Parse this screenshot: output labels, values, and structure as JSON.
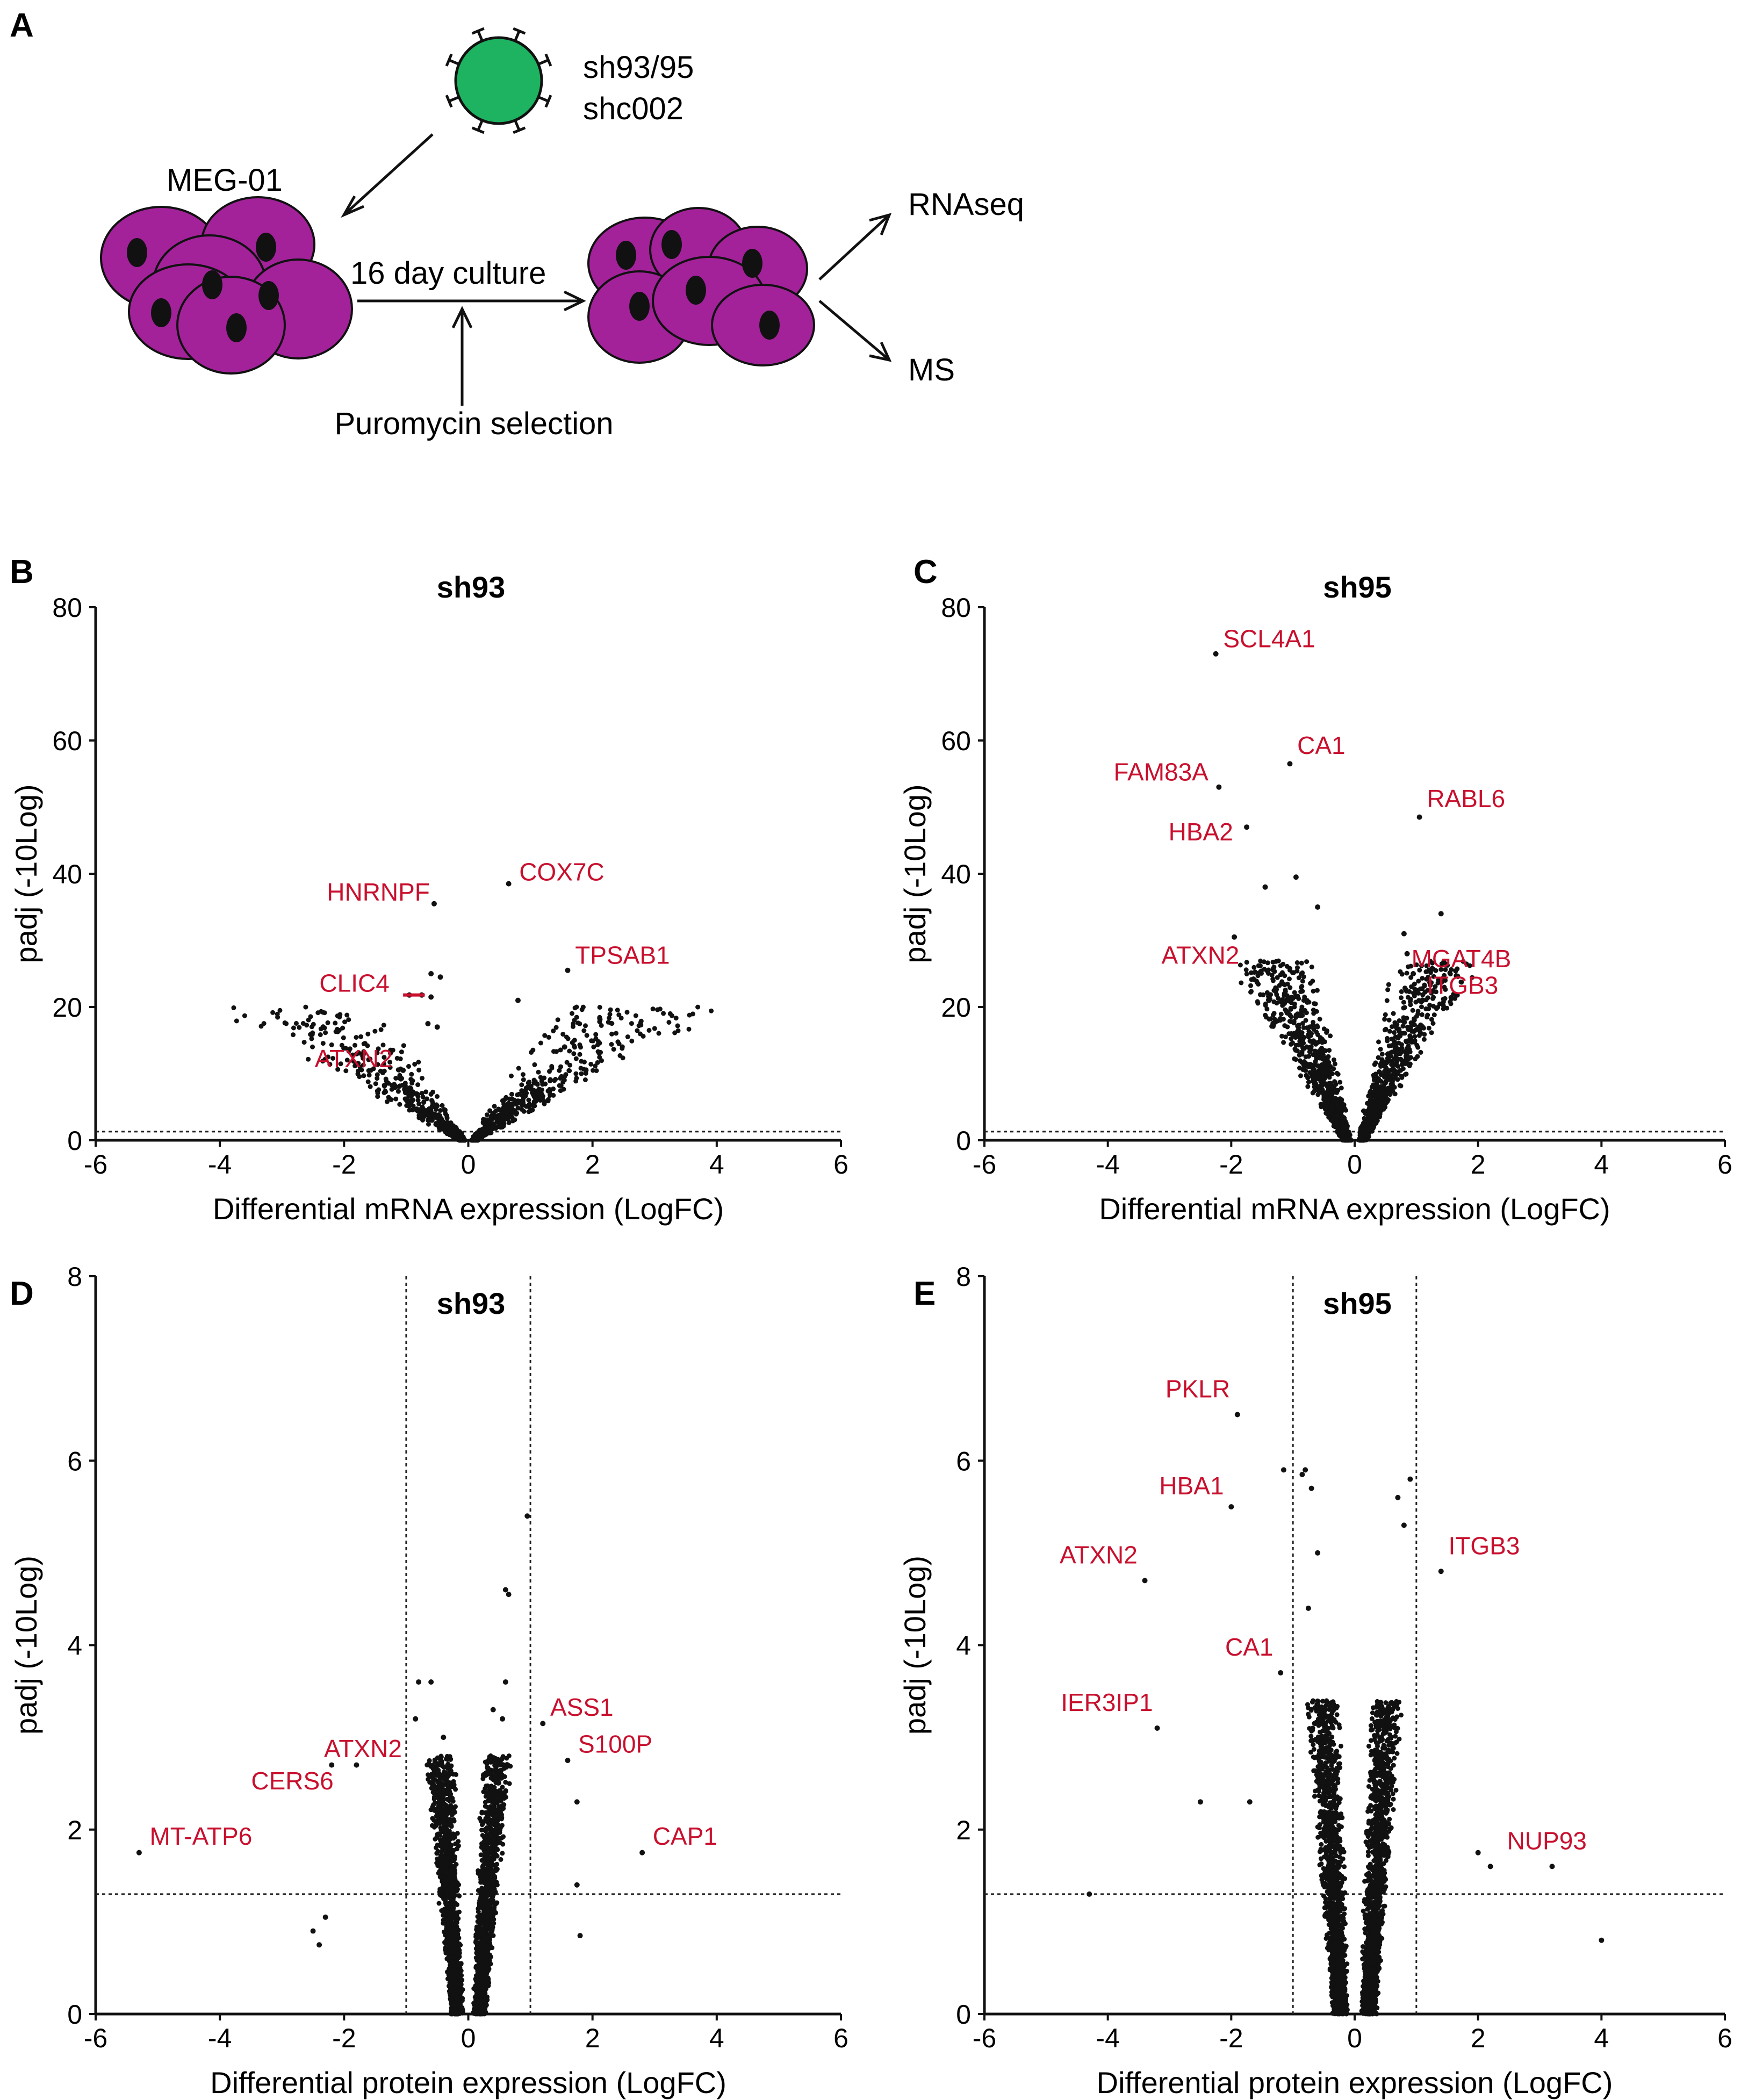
{
  "panel_a": {
    "letter": "A",
    "virus_label_1": "sh93/95",
    "virus_label_2": "shc002",
    "cell_line": "MEG-01",
    "culture": "16 day culture",
    "selection": "Puromycin selection",
    "out_1": "RNAseq",
    "out_2": "MS",
    "colors": {
      "virus": "#1db360",
      "cell": "#a3229a",
      "nucleus": "#111111"
    }
  },
  "chart_data": [
    {
      "id": "B",
      "letter": "B",
      "type": "scatter",
      "title": "sh93",
      "xlabel": "Differential mRNA expression (LogFC)",
      "ylabel": "padj (-10Log)",
      "xlim": [
        -6,
        6
      ],
      "ylim": [
        0,
        80
      ],
      "xticks": [
        "-6",
        "-4",
        "-2",
        "0",
        "2",
        "4",
        "6"
      ],
      "yticks": [
        "0",
        "20",
        "40",
        "60",
        "80"
      ],
      "hline": 1.3,
      "vlines": [],
      "spread": {
        "seed": 11,
        "count": 1300,
        "widthBase": 0.12,
        "widthSlope": 0.16,
        "ymax": 20,
        "decay": 3.0
      },
      "points": [
        [
          -0.55,
          35.5
        ],
        [
          0.65,
          38.5
        ],
        [
          1.6,
          25.5
        ],
        [
          -0.6,
          25
        ],
        [
          -0.45,
          24.5
        ],
        [
          -0.6,
          21.5
        ],
        [
          -0.75,
          21.8
        ],
        [
          -0.95,
          21.8
        ],
        [
          -1.25,
          13.5
        ],
        [
          -1.05,
          10.5
        ],
        [
          1.55,
          14
        ],
        [
          0.8,
          21
        ],
        [
          -0.5,
          17
        ],
        [
          -0.65,
          17.5
        ]
      ],
      "labels": [
        {
          "text": "HNRNPF",
          "x": -0.55,
          "y": 35.5,
          "anchor": "end"
        },
        {
          "text": "COX7C",
          "x": 0.75,
          "y": 38.5,
          "anchor": "start"
        },
        {
          "text": "TPSAB1",
          "x": 1.65,
          "y": 26,
          "anchor": "start"
        },
        {
          "text": "CLIC4",
          "x": -1.2,
          "y": 21.8,
          "anchor": "end"
        },
        {
          "text": "ATXN2",
          "x": -1.15,
          "y": 10.5,
          "anchor": "end"
        }
      ]
    },
    {
      "id": "C",
      "letter": "C",
      "type": "scatter",
      "title": "sh95",
      "xlabel": "Differential mRNA expression (LogFC)",
      "ylabel": "padj (-10Log)",
      "xlim": [
        -6,
        6
      ],
      "ylim": [
        0,
        80
      ],
      "xticks": [
        "-6",
        "-4",
        "-2",
        "0",
        "2",
        "4",
        "6"
      ],
      "yticks": [
        "0",
        "20",
        "40",
        "60",
        "80"
      ],
      "hline": 1.3,
      "vlines": [],
      "spread": {
        "seed": 23,
        "count": 1800,
        "widthBase": 0.15,
        "widthSlope": 0.055,
        "ymax": 27,
        "decay": 2.0
      },
      "points": [
        [
          -2.25,
          73
        ],
        [
          -1.05,
          56.5
        ],
        [
          -2.2,
          53
        ],
        [
          1.05,
          48.5
        ],
        [
          -1.75,
          47
        ],
        [
          -0.95,
          39.5
        ],
        [
          -1.45,
          38
        ],
        [
          -1.95,
          30.5
        ],
        [
          -0.6,
          35
        ],
        [
          0.8,
          31
        ],
        [
          1.4,
          34
        ],
        [
          0.85,
          28
        ],
        [
          0.95,
          25
        ],
        [
          1.1,
          21
        ]
      ],
      "labels": [
        {
          "text": "SCL4A1",
          "x": -2.2,
          "y": 73.5,
          "anchor": "start"
        },
        {
          "text": "CA1",
          "x": -1.0,
          "y": 57.5,
          "anchor": "start"
        },
        {
          "text": "FAM83A",
          "x": -2.3,
          "y": 53.5,
          "anchor": "end"
        },
        {
          "text": "RABL6",
          "x": 1.1,
          "y": 49.5,
          "anchor": "start"
        },
        {
          "text": "HBA2",
          "x": -1.9,
          "y": 44.5,
          "anchor": "end"
        },
        {
          "text": "ATXN2",
          "x": -1.8,
          "y": 26,
          "anchor": "end"
        },
        {
          "text": "MGAT4B",
          "x": 0.85,
          "y": 25.5,
          "anchor": "start"
        },
        {
          "text": "ITGB3",
          "x": 1.1,
          "y": 21.5,
          "anchor": "start"
        }
      ]
    },
    {
      "id": "D",
      "letter": "D",
      "type": "scatter",
      "title": "sh93",
      "xlabel": "Differential protein expression (LogFC)",
      "ylabel": "padj (-10Log)",
      "xlim": [
        -6,
        6
      ],
      "ylim": [
        0,
        8
      ],
      "xticks": [
        "-6",
        "-4",
        "-2",
        "0",
        "2",
        "4",
        "6"
      ],
      "yticks": [
        "0",
        "2",
        "4",
        "6",
        "8"
      ],
      "hline": 1.3,
      "vlines": [
        -1,
        1
      ],
      "spread": {
        "seed": 37,
        "count": 2600,
        "widthBase": 0.22,
        "widthSlope": 0.12,
        "ymax": 2.8,
        "decay": 1.6
      },
      "points": [
        [
          -5.3,
          1.75
        ],
        [
          -2.2,
          2.7
        ],
        [
          -1.8,
          2.7
        ],
        [
          0.95,
          5.4
        ],
        [
          0.6,
          4.6
        ],
        [
          0.65,
          4.55
        ],
        [
          1.2,
          3.15
        ],
        [
          1.6,
          2.75
        ],
        [
          1.75,
          2.3
        ],
        [
          2.8,
          1.75
        ],
        [
          -0.6,
          3.6
        ],
        [
          -0.8,
          3.6
        ],
        [
          0.6,
          3.6
        ],
        [
          0.55,
          3.2
        ],
        [
          0.4,
          3.3
        ],
        [
          -2.3,
          1.05
        ],
        [
          -2.5,
          0.9
        ],
        [
          -2.4,
          0.75
        ],
        [
          1.8,
          0.85
        ],
        [
          1.75,
          1.4
        ],
        [
          -0.85,
          3.2
        ],
        [
          -0.4,
          3.0
        ]
      ],
      "labels": [
        {
          "text": "MT-ATP6",
          "x": -5.2,
          "y": 1.8,
          "anchor": "start"
        },
        {
          "text": "CERS6",
          "x": -2.1,
          "y": 2.4,
          "anchor": "end"
        },
        {
          "text": "ATXN2",
          "x": -1.0,
          "y": 2.75,
          "anchor": "end"
        },
        {
          "text": "ASS1",
          "x": 1.25,
          "y": 3.2,
          "anchor": "start"
        },
        {
          "text": "S100P",
          "x": 1.7,
          "y": 2.8,
          "anchor": "start"
        },
        {
          "text": "CAP1",
          "x": 2.9,
          "y": 1.8,
          "anchor": "start"
        }
      ]
    },
    {
      "id": "E",
      "letter": "E",
      "type": "scatter",
      "title": "sh95",
      "xlabel": "Differential protein expression (LogFC)",
      "ylabel": "padj (-10Log)",
      "xlim": [
        -6,
        6
      ],
      "ylim": [
        0,
        8
      ],
      "xticks": [
        "-6",
        "-4",
        "-2",
        "0",
        "2",
        "4",
        "6"
      ],
      "yticks": [
        "0",
        "2",
        "4",
        "6",
        "8"
      ],
      "hline": 1.3,
      "vlines": [
        -1,
        1
      ],
      "spread": {
        "seed": 53,
        "count": 2800,
        "widthBase": 0.28,
        "widthSlope": 0.1,
        "ymax": 3.4,
        "decay": 1.5
      },
      "points": [
        [
          -1.9,
          6.5
        ],
        [
          -2.0,
          5.5
        ],
        [
          -3.4,
          4.7
        ],
        [
          1.4,
          4.8
        ],
        [
          -1.2,
          3.7
        ],
        [
          -3.2,
          3.1
        ],
        [
          3.2,
          1.6
        ],
        [
          2.0,
          1.75
        ],
        [
          4.0,
          0.8
        ],
        [
          -4.3,
          1.3
        ],
        [
          -1.15,
          5.9
        ],
        [
          -0.8,
          5.9
        ],
        [
          -0.85,
          5.85
        ],
        [
          -0.7,
          5.7
        ],
        [
          0.9,
          5.8
        ],
        [
          0.7,
          5.6
        ],
        [
          0.8,
          5.3
        ],
        [
          -0.6,
          5.0
        ],
        [
          -0.75,
          4.4
        ],
        [
          -2.5,
          2.3
        ],
        [
          -1.7,
          2.3
        ],
        [
          2.2,
          1.6
        ]
      ],
      "labels": [
        {
          "text": "PKLR",
          "x": -1.95,
          "y": 6.65,
          "anchor": "end"
        },
        {
          "text": "HBA1",
          "x": -2.05,
          "y": 5.6,
          "anchor": "end"
        },
        {
          "text": "ATXN2",
          "x": -3.45,
          "y": 4.85,
          "anchor": "end"
        },
        {
          "text": "ITGB3",
          "x": 1.45,
          "y": 4.95,
          "anchor": "start"
        },
        {
          "text": "CA1",
          "x": -1.25,
          "y": 3.85,
          "anchor": "end"
        },
        {
          "text": "IER3IP1",
          "x": -3.2,
          "y": 3.25,
          "anchor": "end"
        },
        {
          "text": "NUP93",
          "x": 2.4,
          "y": 1.75,
          "anchor": "start"
        }
      ]
    }
  ]
}
